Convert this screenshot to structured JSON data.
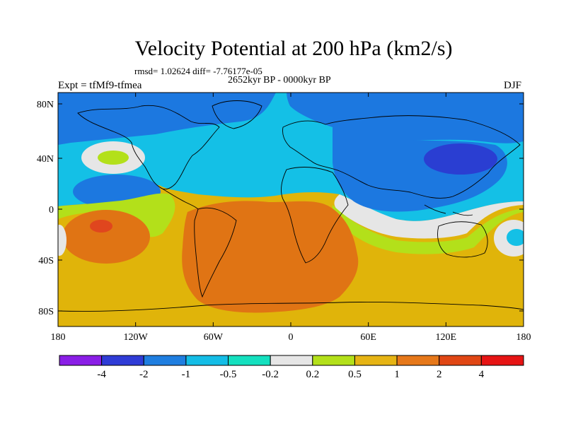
{
  "header": {
    "title": "Velocity Potential at 200 hPa (km2/s)",
    "stats": "rmsd= 1.02624 diff= -7.76177e-05",
    "period": "2652kyr BP - 0000kyr BP",
    "experiment": "Expt = tfMf9-tfmea",
    "season": "DJF"
  },
  "axes": {
    "y_ticks": [
      "80N",
      "40N",
      "0",
      "40S",
      "80S"
    ],
    "x_ticks": [
      "180",
      "120W",
      "60W",
      "0",
      "60E",
      "120E",
      "180"
    ]
  },
  "colorbar": {
    "labels": [
      "-4",
      "-2",
      "-1",
      "-0.5",
      "-0.2",
      "0.2",
      "0.5",
      "1",
      "2",
      "4"
    ],
    "colors": [
      "#8a1ee6",
      "#2f3cd6",
      "#1f7ee0",
      "#14bde6",
      "#14e0bf",
      "#e6e6e6",
      "#b3e01a",
      "#e6b414",
      "#e6781a",
      "#e04614",
      "#e61414"
    ]
  },
  "palette": {
    "base": "#e0b40a",
    "orange": "#e07414",
    "red": "#e0461e",
    "cyan": "#14c0e6",
    "blue": "#1c78e0",
    "deep_blue": "#2a3ed2",
    "white": "#e6e6e6",
    "lime": "#b3e01a",
    "coast": "#000000"
  }
}
